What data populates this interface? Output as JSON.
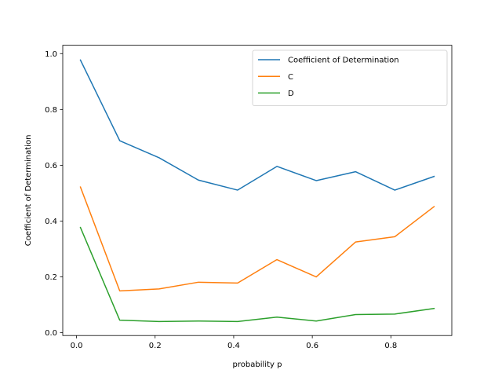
{
  "chart_data": {
    "type": "line",
    "title": "",
    "xlabel": "probability p",
    "ylabel": "Coefficient of Determination",
    "xlim": [
      -0.035,
      0.955
    ],
    "ylim": [
      -0.01,
      1.03
    ],
    "x": [
      0.01,
      0.11,
      0.21,
      0.31,
      0.41,
      0.51,
      0.61,
      0.71,
      0.81,
      0.91
    ],
    "x_ticks": [
      0.0,
      0.2,
      0.4,
      0.6,
      0.8
    ],
    "x_tick_labels": [
      "0.0",
      "0.2",
      "0.4",
      "0.6",
      "0.8"
    ],
    "y_ticks": [
      0.0,
      0.2,
      0.4,
      0.6,
      0.8,
      1.0
    ],
    "y_tick_labels": [
      "0.0",
      "0.2",
      "0.4",
      "0.6",
      "0.8",
      "1.0"
    ],
    "grid": false,
    "legend_position": "top-right",
    "series": [
      {
        "name": "Coefficient of Determination",
        "color": "#1f77b4",
        "values": [
          0.977,
          0.688,
          0.627,
          0.547,
          0.511,
          0.596,
          0.545,
          0.577,
          0.511,
          0.56
        ]
      },
      {
        "name": "C",
        "color": "#ff7f0e",
        "values": [
          0.522,
          0.15,
          0.157,
          0.181,
          0.178,
          0.262,
          0.2,
          0.325,
          0.344,
          0.452
        ]
      },
      {
        "name": "D",
        "color": "#2ca02c",
        "values": [
          0.377,
          0.045,
          0.04,
          0.042,
          0.04,
          0.056,
          0.042,
          0.065,
          0.067,
          0.087
        ]
      }
    ]
  }
}
